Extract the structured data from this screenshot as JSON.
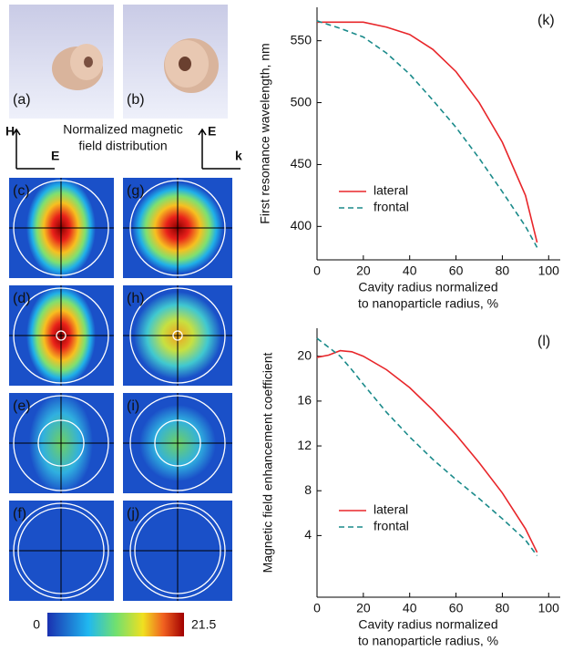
{
  "figure": {
    "panels": [
      "(a)",
      "(b)",
      "(c)",
      "(d)",
      "(e)",
      "(f)",
      "(g)",
      "(h)",
      "(i)",
      "(j)"
    ],
    "caption_lines": [
      "Normalized magnetic",
      "field distribution"
    ],
    "axes_left": {
      "vertical": "H",
      "horizontal": "E"
    },
    "axes_right": {
      "vertical": "E",
      "horizontal": "k"
    },
    "colorbar": {
      "min": 0,
      "max": 21.5
    }
  },
  "chart_data": [
    {
      "type": "line",
      "panel": "(k)",
      "ylabel": "First resonance wavelength, nm",
      "xlabel_lines": [
        "Cavity radius normalized",
        "to nanoparticle radius, %"
      ],
      "x": [
        0,
        10,
        20,
        30,
        40,
        50,
        60,
        70,
        80,
        90,
        95
      ],
      "series": [
        {
          "name": "lateral",
          "color": "#e8262a",
          "style": "solid",
          "values": [
            565,
            565,
            565,
            561,
            555,
            543,
            525,
            500,
            468,
            425,
            387
          ]
        },
        {
          "name": "frontal",
          "color": "#1a8a8a",
          "style": "dashed",
          "values": [
            566,
            560,
            553,
            540,
            523,
            502,
            480,
            455,
            428,
            400,
            383
          ]
        }
      ],
      "xlim": [
        0,
        105
      ],
      "ylim": [
        373,
        577
      ],
      "xticks": [
        0,
        20,
        40,
        60,
        80,
        100
      ],
      "yticks": [
        400,
        450,
        500,
        550
      ]
    },
    {
      "type": "line",
      "panel": "(l)",
      "ylabel": "Magnetic field enhancement coefficient",
      "xlabel_lines": [
        "Cavity radius normalized",
        "to nanoparticle radius, %"
      ],
      "x": [
        0,
        5,
        10,
        15,
        20,
        30,
        40,
        50,
        60,
        70,
        80,
        90,
        95
      ],
      "series": [
        {
          "name": "lateral",
          "color": "#e8262a",
          "style": "solid",
          "values": [
            19.9,
            20.1,
            20.5,
            20.4,
            20,
            18.8,
            17.2,
            15.2,
            13,
            10.5,
            7.8,
            4.6,
            2.5
          ]
        },
        {
          "name": "frontal",
          "color": "#1a8a8a",
          "style": "dashed",
          "values": [
            21.6,
            20.8,
            20,
            18.8,
            17.5,
            15,
            12.8,
            10.8,
            9,
            7.3,
            5.5,
            3.6,
            2.2
          ]
        }
      ],
      "xlim": [
        0,
        105
      ],
      "ylim": [
        -1.5,
        22.5
      ],
      "xticks": [
        0,
        20,
        40,
        60,
        80,
        100
      ],
      "yticks": [
        4,
        8,
        12,
        16,
        20
      ]
    }
  ]
}
